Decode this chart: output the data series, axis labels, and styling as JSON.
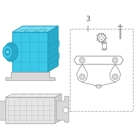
{
  "bg_color": "#ffffff",
  "lc": "#888888",
  "lc_thin": "#aaaaaa",
  "mc_face": "#3cc8e8",
  "mc_top": "#7addf0",
  "mc_right": "#29aac8",
  "mc_edge": "#1a99bb",
  "ecu_face": "#e8e8e8",
  "ecu_edge": "#aaaaaa",
  "text_color": "#444444",
  "label_3": "3"
}
